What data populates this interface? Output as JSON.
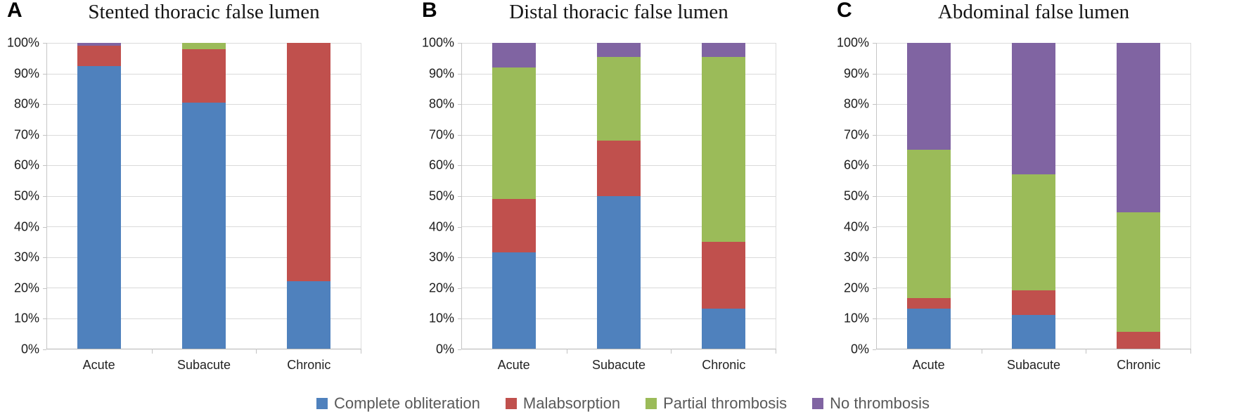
{
  "y_axis": {
    "tick_values": [
      0,
      10,
      20,
      30,
      40,
      50,
      60,
      70,
      80,
      90,
      100
    ],
    "tick_labels": [
      "0%",
      "10%",
      "20%",
      "30%",
      "40%",
      "50%",
      "60%",
      "70%",
      "80%",
      "90%",
      "100%"
    ]
  },
  "legend": {
    "position": "bottom-center-shared",
    "items": [
      {
        "label": "Complete obliteration",
        "color": "#4F81BD"
      },
      {
        "label": "Malabsorption",
        "color": "#C0504D"
      },
      {
        "label": "Partial thrombosis",
        "color": "#9BBB59"
      },
      {
        "label": "No thrombosis",
        "color": "#8064A2"
      }
    ]
  },
  "chart_data": [
    {
      "type": "bar",
      "stacked": true,
      "panel_label": "A",
      "title": "Stented thoracic false lumen",
      "categories": [
        "Acute",
        "Subacute",
        "Chronic"
      ],
      "xlabel": "",
      "ylabel": "",
      "ylim": [
        0,
        100
      ],
      "grid": true,
      "series": [
        {
          "name": "Complete obliteration",
          "color": "#4F81BD",
          "values": [
            92.5,
            80.5,
            22
          ]
        },
        {
          "name": "Malabsorption",
          "color": "#C0504D",
          "values": [
            6.5,
            17.5,
            78
          ]
        },
        {
          "name": "Partial thrombosis",
          "color": "#9BBB59",
          "values": [
            0,
            2,
            0
          ]
        },
        {
          "name": "No thrombosis",
          "color": "#8064A2",
          "values": [
            1,
            0,
            0
          ]
        }
      ]
    },
    {
      "type": "bar",
      "stacked": true,
      "panel_label": "B",
      "title": "Distal thoracic false lumen",
      "categories": [
        "Acute",
        "Subacute",
        "Chronic"
      ],
      "xlabel": "",
      "ylabel": "",
      "ylim": [
        0,
        100
      ],
      "grid": true,
      "series": [
        {
          "name": "Complete obliteration",
          "color": "#4F81BD",
          "values": [
            31.5,
            50,
            13
          ]
        },
        {
          "name": "Malabsorption",
          "color": "#C0504D",
          "values": [
            17.5,
            18,
            22
          ]
        },
        {
          "name": "Partial thrombosis",
          "color": "#9BBB59",
          "values": [
            43,
            27.5,
            60.5
          ]
        },
        {
          "name": "No thrombosis",
          "color": "#8064A2",
          "values": [
            8,
            4.5,
            4.5
          ]
        }
      ]
    },
    {
      "type": "bar",
      "stacked": true,
      "panel_label": "C",
      "title": "Abdominal false lumen",
      "categories": [
        "Acute",
        "Subacute",
        "Chronic"
      ],
      "xlabel": "",
      "ylabel": "",
      "ylim": [
        0,
        100
      ],
      "grid": true,
      "series": [
        {
          "name": "Complete obliteration",
          "color": "#4F81BD",
          "values": [
            13,
            11,
            0
          ]
        },
        {
          "name": "Malabsorption",
          "color": "#C0504D",
          "values": [
            3.5,
            8,
            5.5
          ]
        },
        {
          "name": "Partial thrombosis",
          "color": "#9BBB59",
          "values": [
            48.5,
            38,
            39
          ]
        },
        {
          "name": "No thrombosis",
          "color": "#8064A2",
          "values": [
            35,
            43,
            55.5
          ]
        }
      ]
    }
  ]
}
